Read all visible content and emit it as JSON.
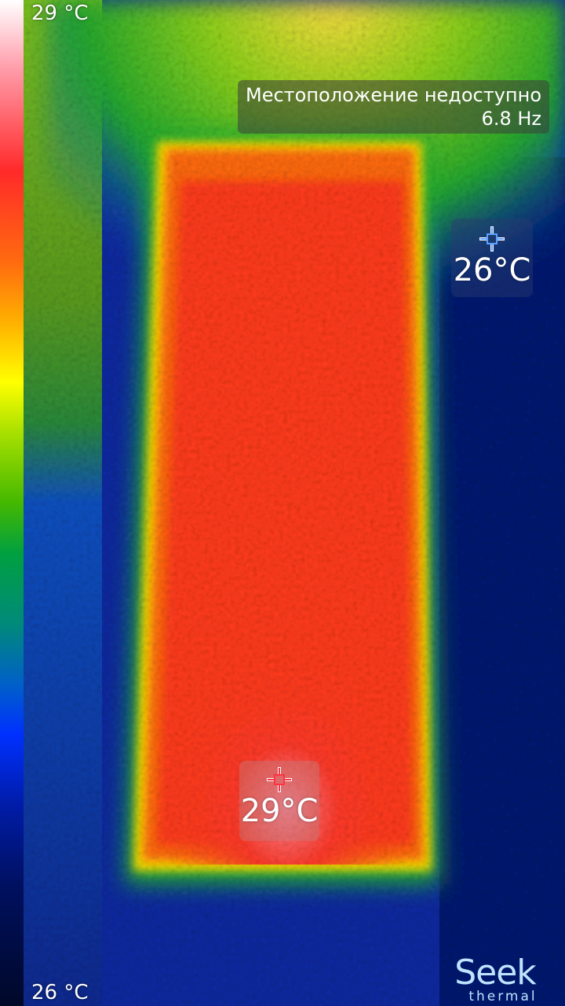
{
  "scale": {
    "max_label": "29 °C",
    "min_label": "26 °C"
  },
  "info": {
    "location": "Местоположение недоступно",
    "frame_rate": "6.8 Hz"
  },
  "spots": {
    "cold": {
      "temperature": "26°C",
      "color": "#5aa0ff"
    },
    "hot": {
      "temperature": "29°C",
      "color": "#ff3344"
    }
  },
  "logo": {
    "name": "Seek",
    "sub": "thermal"
  },
  "colors": {
    "background_cold": "#0a1a7a",
    "object_hot": "#ff3a1a",
    "edge_warm": "#ffe000",
    "ambient_green": "#22b82a"
  }
}
